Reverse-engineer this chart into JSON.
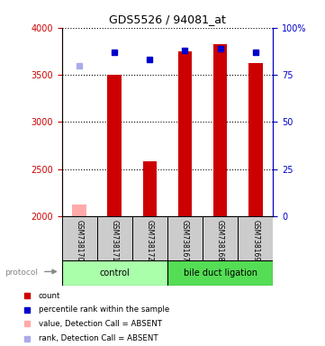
{
  "title": "GDS5526 / 94081_at",
  "samples": [
    "GSM738170",
    "GSM738171",
    "GSM738172",
    "GSM738167",
    "GSM738168",
    "GSM738169"
  ],
  "red_values": [
    2120,
    3500,
    2580,
    3750,
    3830,
    3620
  ],
  "blue_values_right": [
    80,
    87,
    83,
    88,
    89,
    87
  ],
  "red_absent": [
    true,
    false,
    false,
    false,
    false,
    false
  ],
  "blue_absent": [
    true,
    false,
    false,
    false,
    false,
    false
  ],
  "ylim_left": [
    2000,
    4000
  ],
  "ylim_right": [
    0,
    100
  ],
  "yticks_left": [
    2000,
    2500,
    3000,
    3500,
    4000
  ],
  "yticks_right": [
    0,
    25,
    50,
    75,
    100
  ],
  "left_axis_color": "#cc0000",
  "right_axis_color": "#0000cc",
  "bar_color_present": "#cc0000",
  "bar_color_absent": "#ffaaaa",
  "dot_color_present": "#0000cc",
  "dot_color_absent": "#aaaaee",
  "group_color_control": "#aaffaa",
  "group_color_bile": "#55dd55",
  "sample_label_bg": "#cccccc",
  "bar_width": 0.4
}
